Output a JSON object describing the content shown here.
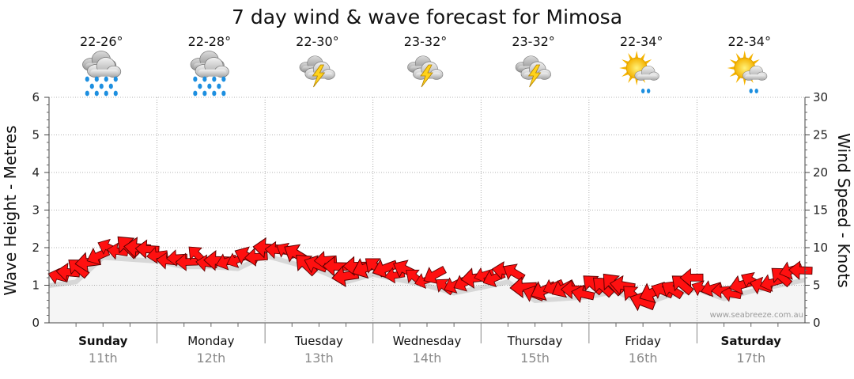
{
  "chart_data": {
    "type": "line",
    "title": "7 day wind & wave forecast for Mimosa",
    "ylabel": "Wave Height - Metres",
    "y2label": "Wind Speed - Knots",
    "ylim": [
      0,
      6
    ],
    "y_ticks": [
      "0",
      "1",
      "2",
      "3",
      "4",
      "5",
      "6"
    ],
    "y2lim": [
      0,
      30
    ],
    "y2_ticks": [
      "0",
      "5",
      "10",
      "15",
      "20",
      "25",
      "30"
    ],
    "grid": true,
    "watermark": "www.seabreeze.com.au",
    "days": [
      {
        "name": "Sunday",
        "date": "11th",
        "temp": "22-26°",
        "weather": "rain-icon",
        "weekend": true
      },
      {
        "name": "Monday",
        "date": "12th",
        "temp": "22-28°",
        "weather": "rain-icon",
        "weekend": false
      },
      {
        "name": "Tuesday",
        "date": "13th",
        "temp": "22-30°",
        "weather": "storm-icon",
        "weekend": false
      },
      {
        "name": "Wednesday",
        "date": "14th",
        "temp": "23-32°",
        "weather": "storm-icon",
        "weekend": false
      },
      {
        "name": "Thursday",
        "date": "15th",
        "temp": "23-32°",
        "weather": "storm-icon",
        "weekend": false
      },
      {
        "name": "Friday",
        "date": "16th",
        "temp": "22-34°",
        "weather": "sun-shower-icon",
        "weekend": false
      },
      {
        "name": "Saturday",
        "date": "17th",
        "temp": "22-34°",
        "weather": "sun-shower-icon",
        "weekend": true
      }
    ],
    "series": [
      {
        "x_hours": [
          0,
          6,
          12,
          18,
          24,
          30,
          36,
          42,
          48,
          54,
          60,
          66,
          72,
          78,
          84,
          90,
          96,
          102,
          108,
          114,
          120,
          126,
          132,
          138,
          144,
          150,
          156,
          162,
          168
        ],
        "values": [
          1.2,
          1.3,
          1.95,
          1.9,
          1.85,
          1.7,
          1.7,
          1.65,
          2.0,
          1.8,
          1.6,
          1.3,
          1.5,
          1.35,
          1.2,
          1.0,
          1.15,
          1.3,
          0.8,
          0.85,
          0.9,
          1.05,
          0.7,
          0.95,
          1.1,
          0.85,
          1.05,
          1.2,
          1.35
        ],
        "color": "#e00000"
      }
    ]
  }
}
